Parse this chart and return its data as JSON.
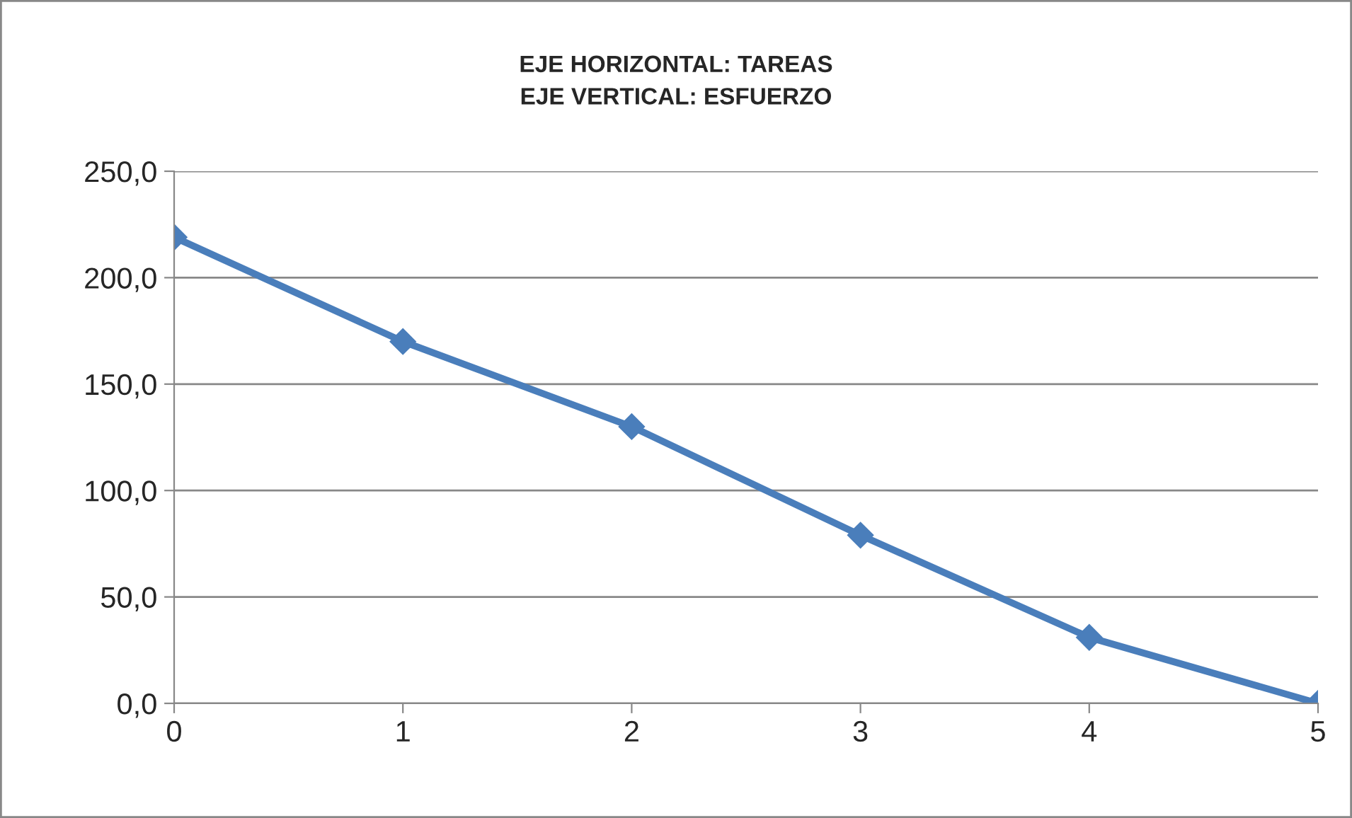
{
  "chart_data": {
    "type": "line",
    "title": "EJE HORIZONTAL: TAREAS\nEJE VERTICAL: ESFUERZO",
    "x": [
      0,
      1,
      2,
      3,
      4,
      5
    ],
    "series": [
      {
        "color": "#4a7ebb",
        "values": [
          219,
          170,
          130,
          79,
          31,
          0
        ]
      }
    ],
    "xlim": [
      0,
      5
    ],
    "xticks": [
      0,
      1,
      2,
      3,
      4,
      5
    ],
    "ylim": [
      0,
      250
    ],
    "yticks": [
      {
        "value": 0,
        "label": "0,0"
      },
      {
        "value": 50,
        "label": "50,0"
      },
      {
        "value": 100,
        "label": "100,0"
      },
      {
        "value": 150,
        "label": "150,0"
      },
      {
        "value": 200,
        "label": "200,0"
      },
      {
        "value": 250,
        "label": "250,0"
      }
    ],
    "grid": "y",
    "marker": "diamond",
    "line_style": "solid",
    "legend": false
  }
}
